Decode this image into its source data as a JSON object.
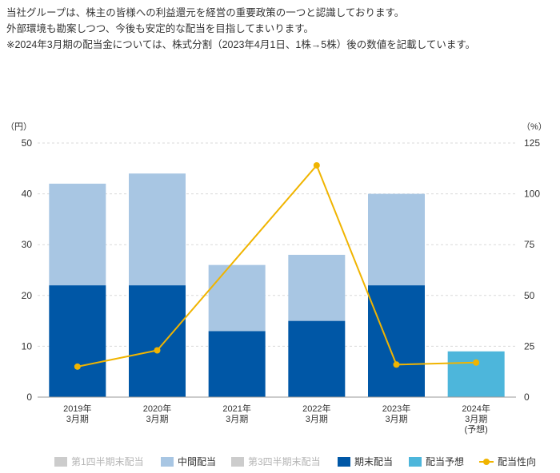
{
  "intro": {
    "line1": "当社グループは、株主の皆様への利益還元を経営の重要政策の一つと認識しております。",
    "line2": "外部環境も勘案しつつ、今後も安定的な配当を目指してまいります。",
    "line3": "※2024年3月期の配当金については、株式分割（2023年4月1日、1株→5株）後の数値を記載しています。"
  },
  "legend": {
    "q1": "第1四半期末配当",
    "interim": "中間配当",
    "q3": "第3四半期末配当",
    "yearend": "期末配当",
    "forecast": "配当予想",
    "payout": "配当性向"
  },
  "colors": {
    "q1": "#cccccc",
    "interim": "#a8c6e3",
    "q3": "#cccccc",
    "yearend": "#0057a6",
    "forecast": "#4db6db",
    "payout": "#f0b400",
    "grid": "#d9d9d9",
    "axis": "#999999",
    "text": "#333333"
  },
  "chart_data": {
    "type": "bar",
    "stacked": true,
    "categories": [
      [
        "2019年",
        "3月期"
      ],
      [
        "2020年",
        "3月期"
      ],
      [
        "2021年",
        "3月期"
      ],
      [
        "2022年",
        "3月期"
      ],
      [
        "2023年",
        "3月期"
      ],
      [
        "2024年",
        "3月期",
        "(予想)"
      ]
    ],
    "y_left": {
      "unit": "（円）",
      "min": 0,
      "max": 50,
      "ticks": [
        0,
        10,
        20,
        30,
        40,
        50
      ]
    },
    "y_right": {
      "unit": "（%）",
      "min": 0,
      "max": 125,
      "ticks": [
        0,
        25,
        50,
        75,
        100,
        125
      ]
    },
    "grid": true,
    "legend_position": "bottom",
    "series": [
      {
        "name": "期末配当",
        "key": "yearend",
        "axis": "left",
        "values": [
          22,
          22,
          13,
          15,
          22,
          null
        ]
      },
      {
        "name": "中間配当",
        "key": "interim",
        "axis": "left",
        "values": [
          20,
          22,
          13,
          13,
          18,
          null
        ]
      },
      {
        "name": "配当予想",
        "key": "forecast",
        "axis": "left",
        "values": [
          null,
          null,
          null,
          null,
          null,
          9
        ]
      },
      {
        "name": "配当性向",
        "key": "payout",
        "axis": "right",
        "type": "line",
        "values": [
          15,
          23,
          null,
          114,
          16,
          17
        ]
      }
    ]
  }
}
